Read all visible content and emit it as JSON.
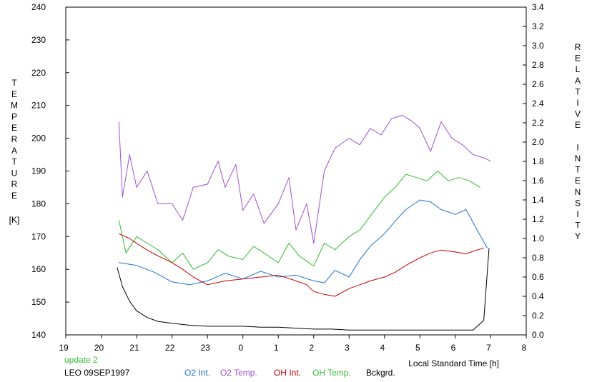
{
  "chart_data": {
    "type": "line",
    "y_left_label_letters": [
      "T",
      "E",
      "M",
      "P",
      "E",
      "R",
      "A",
      "T",
      "U",
      "R",
      "E"
    ],
    "y_left_unit": "[K]",
    "y_right_label_letters": [
      "R",
      "E",
      "L",
      "A",
      "T",
      "I",
      "V",
      "E",
      "",
      "I",
      "N",
      "T",
      "E",
      "N",
      "S",
      "I",
      "T",
      "Y"
    ],
    "xlabel": "Local Standard Time [h]",
    "x_tick_labels": [
      "19",
      "20",
      "21",
      "22",
      "23",
      "0",
      "1",
      "2",
      "3",
      "4",
      "5",
      "6",
      "7",
      "8"
    ],
    "xlim": [
      19,
      32
    ],
    "ylim_left": [
      140,
      240
    ],
    "y_left_ticks": [
      "140",
      "150",
      "160",
      "170",
      "180",
      "190",
      "200",
      "210",
      "220",
      "230",
      "240"
    ],
    "ylim_right": [
      0.0,
      3.4
    ],
    "y_right_ticks": [
      "0.0",
      "0.2",
      "0.4",
      "0.6",
      "0.8",
      "1.0",
      "1.2",
      "1.4",
      "1.6",
      "1.8",
      "2.0",
      "2.2",
      "2.4",
      "2.6",
      "2.8",
      "3.0",
      "3.2",
      "3.4"
    ],
    "update_label": "update 2",
    "station_label": "LEO 09SEP1997",
    "legend": [
      {
        "name": "O2 Int.",
        "color": "#1a6fd6"
      },
      {
        "name": "O2 Temp.",
        "color": "#9b4fd1"
      },
      {
        "name": "OH Int.",
        "color": "#cc0000"
      },
      {
        "name": "OH Temp.",
        "color": "#33bb33"
      },
      {
        "name": "Bckgrd.",
        "color": "#000000"
      }
    ],
    "series": [
      {
        "key": "o2_temp",
        "axis": "left",
        "color": "#9b4fd1",
        "x": [
          20.5,
          20.6,
          20.8,
          21.0,
          21.3,
          21.6,
          22.0,
          22.3,
          22.6,
          23.0,
          23.3,
          23.5,
          23.8,
          24.0,
          24.3,
          24.6,
          25.0,
          25.3,
          25.5,
          25.8,
          26.0,
          26.3,
          26.6,
          27.0,
          27.3,
          27.6,
          27.9,
          28.2,
          28.5,
          28.8,
          29.0,
          29.3,
          29.6,
          29.9,
          30.2,
          30.5,
          30.8,
          31.0
        ],
        "y": [
          205,
          182,
          195,
          185,
          190,
          180,
          180,
          175,
          185,
          186,
          193,
          185,
          192,
          178,
          183,
          174,
          180,
          188,
          172,
          180,
          168,
          190,
          197,
          200,
          198,
          203,
          201,
          206,
          207,
          205,
          203,
          196,
          205,
          200,
          198,
          195,
          194,
          193
        ]
      },
      {
        "key": "oh_temp",
        "axis": "left",
        "color": "#33bb33",
        "x": [
          20.5,
          20.7,
          21.0,
          21.3,
          21.6,
          22.0,
          22.3,
          22.6,
          23.0,
          23.3,
          23.6,
          24.0,
          24.3,
          24.6,
          25.0,
          25.3,
          25.6,
          26.0,
          26.3,
          26.6,
          27.0,
          27.3,
          28.0,
          28.3,
          28.6,
          28.9,
          29.2,
          29.5,
          29.8,
          30.1,
          30.4,
          30.7
        ],
        "y": [
          175,
          165,
          170,
          168,
          166,
          162,
          165,
          160,
          162,
          166,
          164,
          163,
          167,
          165,
          162,
          168,
          164,
          161,
          168,
          166,
          170,
          172,
          182,
          185,
          189,
          188,
          187,
          190,
          187,
          188,
          187,
          185
        ]
      },
      {
        "key": "o2_int",
        "axis": "right",
        "color": "#1a6fd6",
        "x": [
          20.5,
          21.0,
          21.5,
          22.0,
          22.5,
          23.0,
          23.5,
          24.0,
          24.5,
          25.0,
          25.5,
          26.0,
          26.3,
          26.6,
          27.0,
          27.3,
          27.6,
          28.0,
          28.3,
          28.6,
          29.0,
          29.3,
          29.6,
          30.0,
          30.3,
          30.6,
          30.9
        ],
        "y": [
          0.75,
          0.72,
          0.65,
          0.55,
          0.52,
          0.56,
          0.64,
          0.58,
          0.66,
          0.6,
          0.62,
          0.56,
          0.54,
          0.67,
          0.6,
          0.78,
          0.92,
          1.05,
          1.18,
          1.3,
          1.4,
          1.38,
          1.3,
          1.25,
          1.3,
          1.1,
          0.9
        ]
      },
      {
        "key": "oh_int",
        "axis": "right",
        "color": "#cc0000",
        "x": [
          20.5,
          20.8,
          21.0,
          21.3,
          21.6,
          22.0,
          22.3,
          22.6,
          23.0,
          23.5,
          24.0,
          24.5,
          25.0,
          25.5,
          25.8,
          26.0,
          26.3,
          26.6,
          27.0,
          27.3,
          27.6,
          28.0,
          28.3,
          28.6,
          29.0,
          29.3,
          29.6,
          30.0,
          30.3,
          30.6,
          30.8
        ],
        "y": [
          1.05,
          1.0,
          0.95,
          0.88,
          0.82,
          0.75,
          0.68,
          0.6,
          0.52,
          0.56,
          0.58,
          0.6,
          0.62,
          0.56,
          0.52,
          0.45,
          0.42,
          0.4,
          0.48,
          0.52,
          0.56,
          0.6,
          0.65,
          0.72,
          0.8,
          0.85,
          0.88,
          0.86,
          0.84,
          0.88,
          0.9
        ]
      },
      {
        "key": "bckgrd",
        "axis": "right",
        "color": "#000000",
        "x": [
          20.45,
          20.6,
          20.8,
          21.0,
          21.3,
          21.6,
          22.0,
          22.5,
          23.0,
          23.5,
          24.0,
          24.5,
          25.0,
          25.5,
          26.0,
          26.5,
          27.0,
          27.5,
          28.0,
          28.5,
          29.0,
          29.5,
          30.0,
          30.5,
          30.8,
          30.95
        ],
        "y": [
          0.7,
          0.5,
          0.35,
          0.25,
          0.18,
          0.14,
          0.12,
          0.1,
          0.09,
          0.09,
          0.09,
          0.08,
          0.08,
          0.07,
          0.06,
          0.06,
          0.05,
          0.05,
          0.05,
          0.05,
          0.05,
          0.05,
          0.05,
          0.05,
          0.15,
          0.9
        ]
      }
    ]
  }
}
